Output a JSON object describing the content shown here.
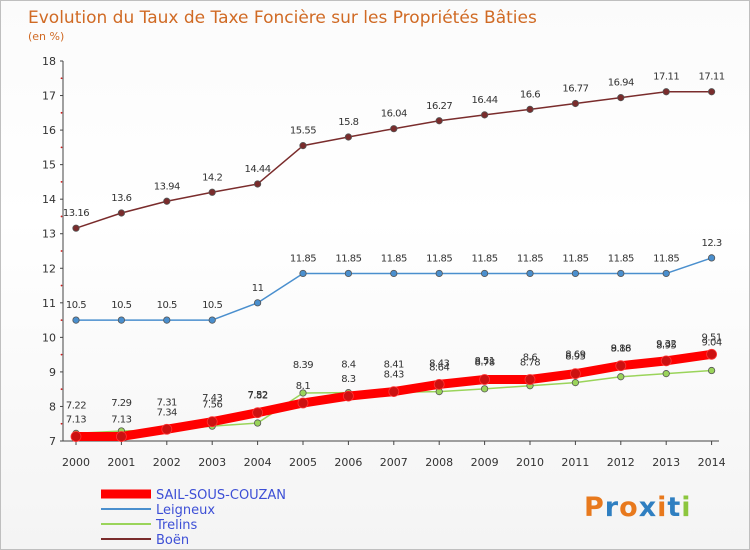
{
  "chart_data": {
    "type": "line",
    "title": "Evolution du Taux de Taxe Foncière sur les Propriétés Bâties",
    "subtitle": "(en %)",
    "xlabel": "",
    "ylabel": "",
    "ylim": [
      7,
      18
    ],
    "yticks": [
      "7",
      "8",
      "9",
      "10",
      "11",
      "12",
      "13",
      "14",
      "15",
      "16",
      "17",
      "18"
    ],
    "categories": [
      "2000",
      "2001",
      "2002",
      "2003",
      "2004",
      "2005",
      "2006",
      "2007",
      "2008",
      "2009",
      "2010",
      "2011",
      "2012",
      "2013",
      "2014"
    ],
    "grid": false,
    "legend_position": "bottom-left",
    "series": [
      {
        "name": "SAIL-SOUS-COUZAN",
        "color": "#ff0000",
        "values": [
          7.13,
          7.13,
          7.34,
          7.56,
          7.82,
          8.1,
          8.3,
          8.43,
          8.64,
          8.78,
          8.78,
          8.95,
          9.18,
          9.32,
          9.51
        ],
        "labels": [
          "7.13",
          "7.13",
          "7.34",
          "7.56",
          "7.82",
          "8.1",
          "8.3",
          "8.43",
          "8.64",
          "8.78",
          "8.78",
          "8.95",
          "9.18",
          "9.32",
          "9.51"
        ]
      },
      {
        "name": "Leigneux",
        "color": "#4a8fce",
        "values": [
          10.5,
          10.5,
          10.5,
          10.5,
          11,
          11.85,
          11.85,
          11.85,
          11.85,
          11.85,
          11.85,
          11.85,
          11.85,
          11.85,
          12.3
        ],
        "labels": [
          "10.5",
          "10.5",
          "10.5",
          "10.5",
          "11",
          "11.85",
          "11.85",
          "11.85",
          "11.85",
          "11.85",
          "11.85",
          "11.85",
          "11.85",
          "11.85",
          "12.3"
        ]
      },
      {
        "name": "Trelins",
        "color": "#9ad45a",
        "values": [
          7.22,
          7.29,
          7.31,
          7.43,
          7.52,
          8.39,
          8.4,
          8.41,
          8.43,
          8.51,
          8.6,
          8.69,
          8.86,
          8.95,
          9.04
        ],
        "labels": [
          "7.22",
          "7.29",
          "7.31",
          "7.43",
          "7.52",
          "8.39",
          "8.4",
          "8.41",
          "8.43",
          "8.51",
          "8.6",
          "8.69",
          "8.86",
          "8.95",
          "9.04"
        ]
      },
      {
        "name": "Boën",
        "color": "#7a2c2c",
        "values": [
          13.16,
          13.6,
          13.94,
          14.2,
          14.44,
          15.55,
          15.8,
          16.04,
          16.27,
          16.44,
          16.6,
          16.77,
          16.94,
          17.11,
          17.11
        ],
        "labels": [
          "13.16",
          "13.6",
          "13.94",
          "14.2",
          "14.44",
          "15.55",
          "15.8",
          "16.04",
          "16.27",
          "16.44",
          "16.6",
          "16.77",
          "16.94",
          "17.11",
          "17.11"
        ]
      }
    ]
  },
  "legend": {
    "items": [
      "SAIL-SOUS-COUZAN",
      "Leigneux",
      "Trelins",
      "Boën"
    ]
  },
  "logo": {
    "text": "Proxiti",
    "colors": [
      "#e8791d",
      "#2f7fc1",
      "#e8791d",
      "#2f7fc1",
      "#e8791d",
      "#2f7fc1",
      "#8cc63e"
    ]
  }
}
